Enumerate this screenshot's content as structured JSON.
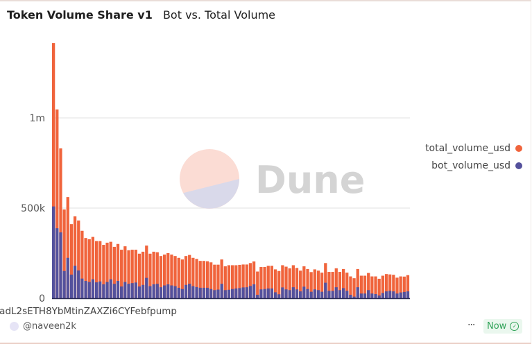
{
  "header": {
    "title": "Token Volume Share v1",
    "subtitle": "Bot vs. Total Volume"
  },
  "footer": {
    "author": "@naveen2k",
    "more_label": "···",
    "status_label": "Now",
    "status_icon": "check-circle-icon"
  },
  "watermark": "Dune",
  "colors": {
    "total": "#f0643c",
    "bot": "#54519c",
    "grid": "#e6e6e6"
  },
  "chart_data": {
    "type": "bar",
    "mode": "overlay",
    "title": "Bot vs. Total Volume",
    "xlabel": "",
    "ylabel": "",
    "ylim": [
      0,
      1450000
    ],
    "yticks": [
      {
        "value": 0,
        "label": "0"
      },
      {
        "value": 500000,
        "label": "500k"
      },
      {
        "value": 1000000,
        "label": "1m"
      }
    ],
    "grid": true,
    "legend_position": "right",
    "visible_x_tick_label": "adL2sETH8YbMtinZAXZi6CYFebfpump",
    "series": [
      {
        "name": "total_volume_usd",
        "color": "#f0643c",
        "values": [
          1415000,
          1047000,
          831000,
          492000,
          561000,
          411000,
          454000,
          431000,
          374000,
          334000,
          327000,
          340000,
          317000,
          317000,
          296000,
          308000,
          313000,
          285000,
          301000,
          269000,
          288000,
          266000,
          269000,
          269000,
          247000,
          258000,
          292000,
          247000,
          258000,
          255000,
          234000,
          242000,
          250000,
          242000,
          234000,
          224000,
          215000,
          234000,
          240000,
          224000,
          218000,
          207000,
          207000,
          205000,
          199000,
          186000,
          186000,
          215000,
          177000,
          183000,
          183000,
          183000,
          185000,
          187000,
          187000,
          195000,
          204000,
          148000,
          173000,
          173000,
          180000,
          180000,
          160000,
          151000,
          183000,
          175000,
          166000,
          183000,
          168000,
          153000,
          177000,
          162000,
          145000,
          160000,
          153000,
          142000,
          195000,
          146000,
          146000,
          166000,
          146000,
          162000,
          142000,
          121000,
          111000,
          162000,
          125000,
          125000,
          140000,
          121000,
          121000,
          108000,
          125000,
          134000,
          132000,
          130000,
          114000,
          121000,
          120000,
          128000
        ]
      },
      {
        "name": "bot_volume_usd",
        "color": "#54519c",
        "values": [
          509000,
          388000,
          365000,
          151000,
          224000,
          131000,
          180000,
          154000,
          109000,
          96000,
          90000,
          105000,
          88000,
          93000,
          77000,
          90000,
          105000,
          80000,
          96000,
          65000,
          90000,
          80000,
          84000,
          87000,
          65000,
          74000,
          113000,
          67000,
          77000,
          80000,
          61000,
          71000,
          77000,
          71000,
          67000,
          58000,
          51000,
          74000,
          80000,
          67000,
          62000,
          58000,
          58000,
          58000,
          51000,
          45000,
          48000,
          80000,
          45000,
          47000,
          51000,
          54000,
          56000,
          60000,
          61000,
          68000,
          77000,
          19000,
          49000,
          51000,
          54000,
          54000,
          33000,
          22000,
          60000,
          49000,
          45000,
          61000,
          49000,
          38000,
          64000,
          51000,
          36000,
          49000,
          45000,
          36000,
          86000,
          41000,
          41000,
          61000,
          45000,
          56000,
          41000,
          19000,
          9000,
          61000,
          26000,
          26000,
          45000,
          26000,
          23000,
          15000,
          29000,
          38000,
          41000,
          38000,
          26000,
          32000,
          35000,
          38000
        ]
      }
    ]
  }
}
